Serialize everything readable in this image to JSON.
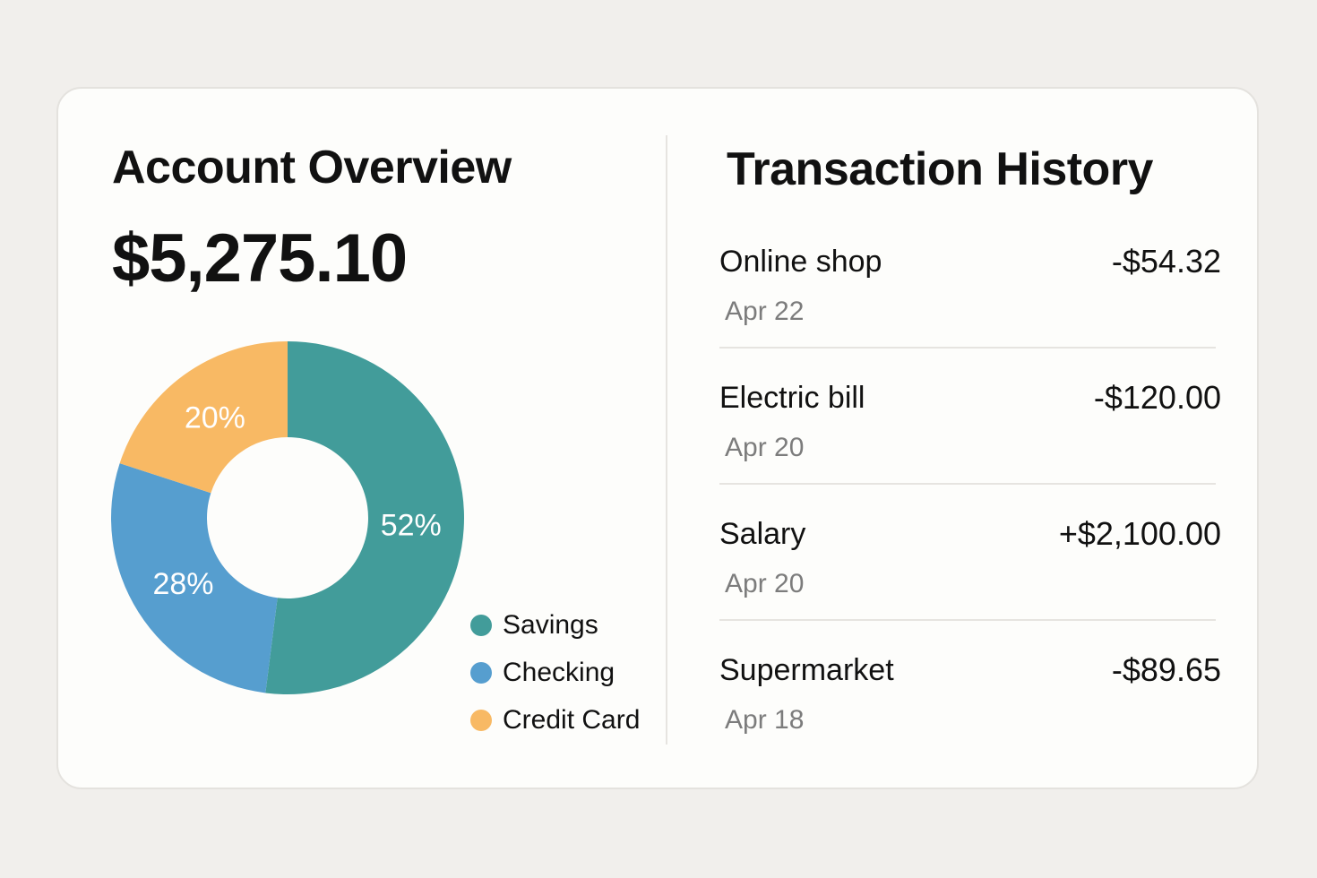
{
  "overview": {
    "title": "Account Overview",
    "balance": "$5,275.10"
  },
  "chart_data": {
    "type": "pie",
    "categories": [
      "Savings",
      "Checking",
      "Credit Card"
    ],
    "values": [
      52,
      28,
      20
    ],
    "labels": [
      "52%",
      "28%",
      "20%"
    ],
    "colors": [
      "#429c9a",
      "#569ecf",
      "#f8b964"
    ],
    "legend_position": "bottom-right"
  },
  "legend": [
    {
      "label": "Savings",
      "color": "#429c9a"
    },
    {
      "label": "Checking",
      "color": "#569ecf"
    },
    {
      "label": "Credit Card",
      "color": "#f8b964"
    }
  ],
  "history": {
    "title": "Transaction History",
    "transactions": [
      {
        "name": "Online shop",
        "amount": "-$54.32",
        "date": "Apr 22"
      },
      {
        "name": "Electric bill",
        "amount": "-$120.00",
        "date": "Apr 20"
      },
      {
        "name": "Salary",
        "amount": "+$2,100.00",
        "date": "Apr 20"
      },
      {
        "name": "Supermarket",
        "amount": "-$89.65",
        "date": "Apr 18"
      }
    ]
  }
}
